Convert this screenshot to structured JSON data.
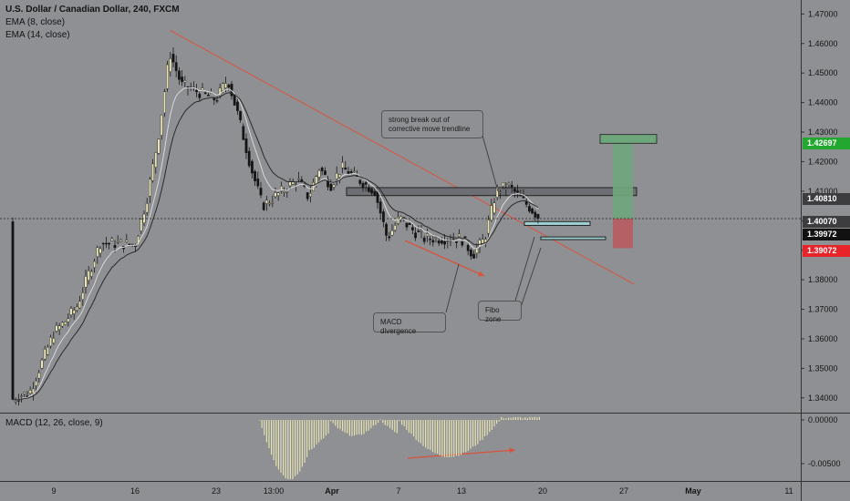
{
  "header": {
    "symbol": "U.S. Dollar / Canadian Dollar, 240, FXCM",
    "indicators": [
      "EMA (8, close)",
      "EMA (14, close)"
    ],
    "macd_label": "MACD (12, 26, close, 9)"
  },
  "annotations": {
    "trendline_break": "strong break out of corrective move trendline",
    "macd_divergence": "MACD divergence",
    "fibo_zone": "Fibo zone"
  },
  "price_tags": {
    "target": "1.42697",
    "resistance": "1.40810",
    "last": "1.40070",
    "current": "1.39972",
    "stop": "1.39072"
  },
  "colors": {
    "background": "#8f9094",
    "candle_up": "#e8e4b4",
    "candle_down": "#141414",
    "ema_fast": "#d8d8d8",
    "ema_slow": "#2a2a2a",
    "trendline": "#d9533b",
    "macd_hist": "#e6e2b0",
    "target_box": "#6fa77c",
    "stop_box": "#b85b5e",
    "fibo_box": "#9bcfd2",
    "tag_green": "#22a830",
    "tag_red": "#e8242b",
    "tag_dark": "#111111"
  },
  "chart_data": {
    "type": "candlestick",
    "title": "U.S. Dollar / Canadian Dollar, 240, FXCM",
    "x_ticks": [
      "9",
      "16",
      "23",
      "13:00",
      "Apr",
      "7",
      "13",
      "20",
      "27",
      "May",
      "11"
    ],
    "y_ticks": [
      "1.47000",
      "1.46000",
      "1.45000",
      "1.44000",
      "1.43000",
      "1.42000",
      "1.41000",
      "1.40000",
      "1.39000",
      "1.38000",
      "1.37000",
      "1.36000",
      "1.35000",
      "1.34000"
    ],
    "ylim": [
      1.335,
      1.4735
    ],
    "macd_ticks": [
      "0.00000",
      "-0.00500"
    ],
    "close_path": [
      {
        "date": "Mar 4",
        "price": 1.3395
      },
      {
        "date": "Mar 5",
        "price": 1.341
      },
      {
        "date": "Mar 6",
        "price": 1.3415
      },
      {
        "date": "Mar 9",
        "price": 1.362
      },
      {
        "date": "Mar 10",
        "price": 1.366
      },
      {
        "date": "Mar 11",
        "price": 1.371
      },
      {
        "date": "Mar 12",
        "price": 1.382
      },
      {
        "date": "Mar 13",
        "price": 1.3925
      },
      {
        "date": "Mar 16",
        "price": 1.392
      },
      {
        "date": "Mar 17",
        "price": 1.407
      },
      {
        "date": "Mar 18",
        "price": 1.428
      },
      {
        "date": "Mar 19",
        "price": 1.457
      },
      {
        "date": "Mar 20",
        "price": 1.446
      },
      {
        "date": "Mar 23",
        "price": 1.441
      },
      {
        "date": "Mar 24",
        "price": 1.448
      },
      {
        "date": "Mar 25",
        "price": 1.434
      },
      {
        "date": "Mar 26",
        "price": 1.418
      },
      {
        "date": "Mar 27",
        "price": 1.405
      },
      {
        "date": "Mar 30",
        "price": 1.414
      },
      {
        "date": "Mar 31",
        "price": 1.408
      },
      {
        "date": "Apr 1",
        "price": 1.418
      },
      {
        "date": "Apr 2",
        "price": 1.412
      },
      {
        "date": "Apr 3",
        "price": 1.418
      },
      {
        "date": "Apr 6",
        "price": 1.41
      },
      {
        "date": "Apr 7",
        "price": 1.394
      },
      {
        "date": "Apr 8",
        "price": 1.401
      },
      {
        "date": "Apr 9",
        "price": 1.397
      },
      {
        "date": "Apr 10",
        "price": 1.394
      },
      {
        "date": "Apr 13",
        "price": 1.394
      },
      {
        "date": "Apr 14",
        "price": 1.3885
      },
      {
        "date": "Apr 15",
        "price": 1.394
      },
      {
        "date": "Apr 16",
        "price": 1.41
      },
      {
        "date": "Apr 17",
        "price": 1.412
      },
      {
        "date": "Apr 19",
        "price": 1.404
      },
      {
        "date": "Apr 20",
        "price": 1.3997
      }
    ],
    "trendline": [
      {
        "date": "Mar 19",
        "price": 1.4645
      },
      {
        "date": "Apr 28",
        "price": 1.3785
      }
    ],
    "levels": {
      "resistance_zone": [
        1.4085,
        1.4112
      ],
      "target": 1.42697,
      "entry": 1.4007,
      "stop": 1.39072,
      "current": 1.39972
    },
    "macd": {
      "min": -0.0068,
      "max": 0.0003
    },
    "grid": false
  }
}
